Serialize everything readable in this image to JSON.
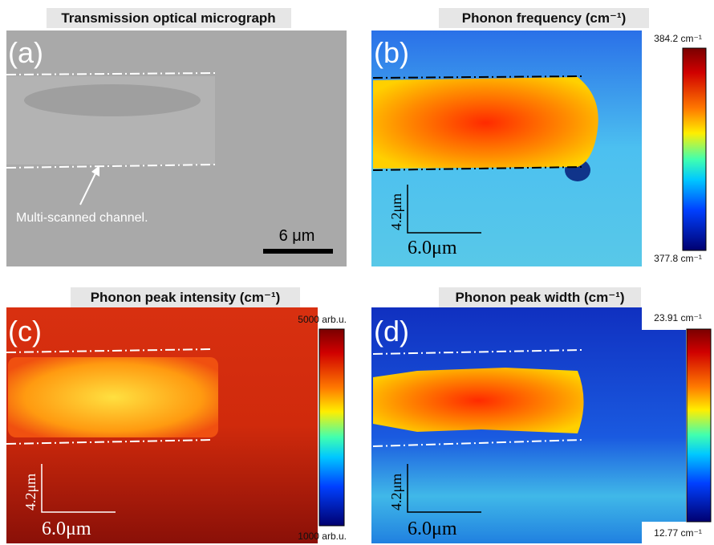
{
  "panels": [
    {
      "label": "(a)",
      "title": "Transmission optical micrograph",
      "scale_bar": "6 μm",
      "annotation": "Multi-scanned channel."
    },
    {
      "label": "(b)",
      "title": "Phonon frequency (cm⁻¹)",
      "colorbar_max": "384.2 cm⁻¹",
      "colorbar_min": "377.8 cm⁻¹",
      "scale_bar_y": "4.2μm",
      "scale_bar_x": "6.0μm"
    },
    {
      "label": "(c)",
      "title": "Phonon peak intensity (cm⁻¹)",
      "colorbar_max": "5000 arb.u.",
      "colorbar_min": "1000 arb.u.",
      "scale_bar_y": "4.2μm",
      "scale_bar_x": "6.0μm"
    },
    {
      "label": "(d)",
      "title": "Phonon peak width (cm⁻¹)",
      "colorbar_max": "23.91 cm⁻¹",
      "colorbar_min": "12.77 cm⁻¹",
      "scale_bar_y": "4.2μm",
      "scale_bar_x": "6.0μm"
    }
  ]
}
